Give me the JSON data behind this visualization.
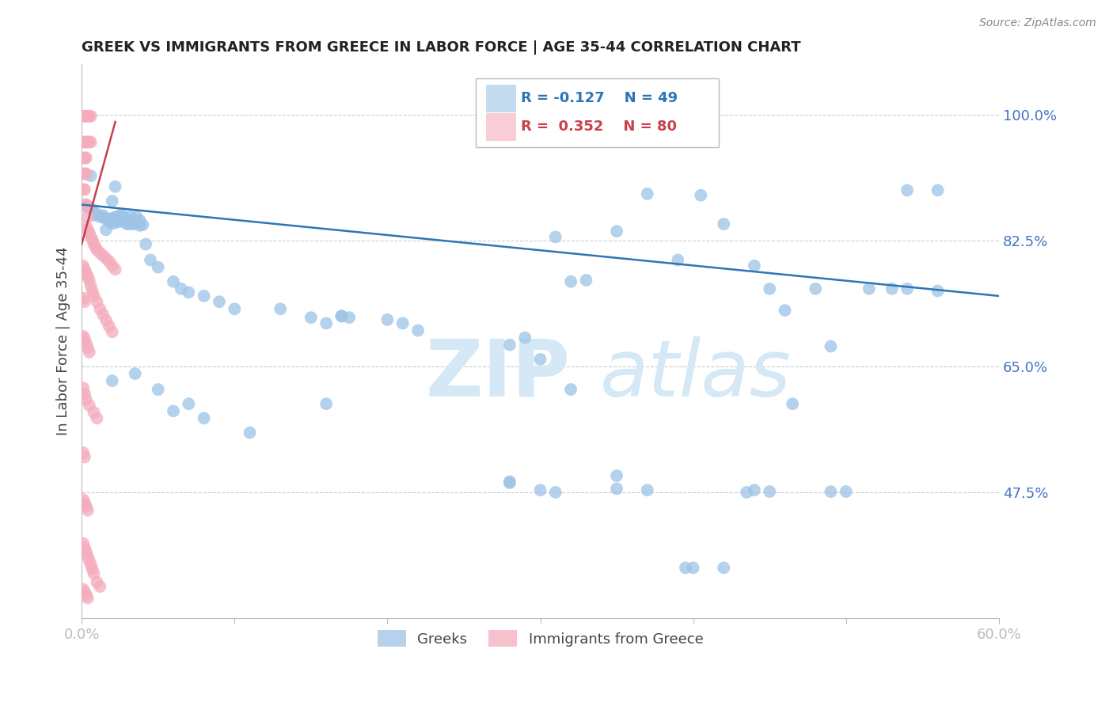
{
  "title": "GREEK VS IMMIGRANTS FROM GREECE IN LABOR FORCE | AGE 35-44 CORRELATION CHART",
  "source": "Source: ZipAtlas.com",
  "ylabel": "In Labor Force | Age 35-44",
  "xlim": [
    0.0,
    0.6
  ],
  "ylim": [
    0.3,
    1.07
  ],
  "xticks": [
    0.0,
    0.1,
    0.2,
    0.3,
    0.4,
    0.5,
    0.6
  ],
  "xticklabels": [
    "0.0%",
    "",
    "",
    "",
    "",
    "",
    "60.0%"
  ],
  "ytick_positions": [
    0.475,
    0.65,
    0.825,
    1.0
  ],
  "ytick_labels": [
    "47.5%",
    "65.0%",
    "82.5%",
    "100.0%"
  ],
  "grid_color": "#cccccc",
  "axis_color": "#bbbbbb",
  "tick_color": "#4472c4",
  "watermark_zip": "ZIP",
  "watermark_atlas": "atlas",
  "blue_R": -0.127,
  "blue_N": 49,
  "pink_R": 0.352,
  "pink_N": 80,
  "blue_color": "#9dc3e6",
  "pink_color": "#f4acbb",
  "blue_line_color": "#2e75b6",
  "pink_line_color": "#c9404d",
  "legend_label_blue": "Greeks",
  "legend_label_pink": "Immigrants from Greece",
  "blue_line_x": [
    0.0,
    0.6
  ],
  "blue_line_y": [
    0.875,
    0.748
  ],
  "pink_line_x": [
    0.0,
    0.022
  ],
  "pink_line_y": [
    0.82,
    0.99
  ],
  "blue_points": [
    [
      0.003,
      0.872
    ],
    [
      0.005,
      0.872
    ],
    [
      0.007,
      0.868
    ],
    [
      0.008,
      0.86
    ],
    [
      0.01,
      0.862
    ],
    [
      0.012,
      0.858
    ],
    [
      0.014,
      0.86
    ],
    [
      0.015,
      0.856
    ],
    [
      0.017,
      0.855
    ],
    [
      0.018,
      0.852
    ],
    [
      0.019,
      0.85
    ],
    [
      0.02,
      0.856
    ],
    [
      0.021,
      0.849
    ],
    [
      0.022,
      0.858
    ],
    [
      0.023,
      0.854
    ],
    [
      0.024,
      0.851
    ],
    [
      0.025,
      0.858
    ],
    [
      0.026,
      0.853
    ],
    [
      0.027,
      0.86
    ],
    [
      0.028,
      0.856
    ],
    [
      0.029,
      0.849
    ],
    [
      0.03,
      0.852
    ],
    [
      0.031,
      0.852
    ],
    [
      0.032,
      0.848
    ],
    [
      0.033,
      0.851
    ],
    [
      0.034,
      0.848
    ],
    [
      0.035,
      0.85
    ],
    [
      0.037,
      0.85
    ],
    [
      0.038,
      0.846
    ],
    [
      0.04,
      0.847
    ],
    [
      0.006,
      0.915
    ],
    [
      0.016,
      0.84
    ],
    [
      0.02,
      0.88
    ],
    [
      0.022,
      0.9
    ],
    [
      0.025,
      0.86
    ],
    [
      0.027,
      0.855
    ],
    [
      0.03,
      0.848
    ],
    [
      0.032,
      0.858
    ],
    [
      0.036,
      0.858
    ],
    [
      0.038,
      0.853
    ],
    [
      0.042,
      0.82
    ],
    [
      0.045,
      0.798
    ],
    [
      0.05,
      0.788
    ],
    [
      0.06,
      0.768
    ],
    [
      0.065,
      0.758
    ],
    [
      0.07,
      0.753
    ],
    [
      0.08,
      0.748
    ],
    [
      0.09,
      0.74
    ],
    [
      0.1,
      0.73
    ],
    [
      0.13,
      0.73
    ],
    [
      0.16,
      0.71
    ],
    [
      0.17,
      0.72
    ],
    [
      0.2,
      0.715
    ],
    [
      0.22,
      0.7
    ],
    [
      0.28,
      0.68
    ],
    [
      0.31,
      0.83
    ],
    [
      0.32,
      0.768
    ],
    [
      0.35,
      0.838
    ],
    [
      0.37,
      0.89
    ],
    [
      0.39,
      0.798
    ],
    [
      0.405,
      0.888
    ],
    [
      0.42,
      0.848
    ],
    [
      0.44,
      0.79
    ],
    [
      0.45,
      0.758
    ],
    [
      0.46,
      0.728
    ],
    [
      0.48,
      0.758
    ],
    [
      0.54,
      0.895
    ],
    [
      0.56,
      0.895
    ],
    [
      0.02,
      0.63
    ],
    [
      0.035,
      0.64
    ],
    [
      0.05,
      0.618
    ],
    [
      0.06,
      0.588
    ],
    [
      0.07,
      0.598
    ],
    [
      0.08,
      0.578
    ],
    [
      0.11,
      0.558
    ],
    [
      0.16,
      0.598
    ],
    [
      0.3,
      0.66
    ],
    [
      0.33,
      0.77
    ],
    [
      0.35,
      0.48
    ],
    [
      0.37,
      0.478
    ],
    [
      0.395,
      0.37
    ],
    [
      0.4,
      0.37
    ],
    [
      0.42,
      0.37
    ],
    [
      0.435,
      0.475
    ],
    [
      0.465,
      0.598
    ],
    [
      0.49,
      0.678
    ],
    [
      0.515,
      0.758
    ],
    [
      0.54,
      0.758
    ],
    [
      0.3,
      0.478
    ],
    [
      0.35,
      0.498
    ],
    [
      0.28,
      0.49
    ],
    [
      0.32,
      0.618
    ],
    [
      0.31,
      0.475
    ],
    [
      0.49,
      0.476
    ],
    [
      0.5,
      0.476
    ],
    [
      0.44,
      0.478
    ],
    [
      0.45,
      0.476
    ],
    [
      0.28,
      0.488
    ],
    [
      0.15,
      0.718
    ],
    [
      0.17,
      0.72
    ],
    [
      0.175,
      0.718
    ],
    [
      0.21,
      0.71
    ],
    [
      0.29,
      0.69
    ],
    [
      0.53,
      0.758
    ],
    [
      0.56,
      0.755
    ]
  ],
  "pink_points": [
    [
      0.002,
      0.998
    ],
    [
      0.003,
      0.998
    ],
    [
      0.004,
      0.998
    ],
    [
      0.005,
      0.998
    ],
    [
      0.006,
      0.998
    ],
    [
      0.002,
      0.998
    ],
    [
      0.001,
      0.962
    ],
    [
      0.002,
      0.962
    ],
    [
      0.003,
      0.962
    ],
    [
      0.004,
      0.962
    ],
    [
      0.005,
      0.962
    ],
    [
      0.006,
      0.962
    ],
    [
      0.001,
      0.94
    ],
    [
      0.002,
      0.94
    ],
    [
      0.003,
      0.94
    ],
    [
      0.001,
      0.918
    ],
    [
      0.002,
      0.918
    ],
    [
      0.003,
      0.918
    ],
    [
      0.001,
      0.896
    ],
    [
      0.002,
      0.896
    ],
    [
      0.002,
      0.875
    ],
    [
      0.003,
      0.875
    ],
    [
      0.004,
      0.858
    ],
    [
      0.003,
      0.844
    ],
    [
      0.004,
      0.84
    ],
    [
      0.005,
      0.836
    ],
    [
      0.006,
      0.83
    ],
    [
      0.007,
      0.826
    ],
    [
      0.008,
      0.82
    ],
    [
      0.009,
      0.816
    ],
    [
      0.01,
      0.812
    ],
    [
      0.012,
      0.808
    ],
    [
      0.014,
      0.804
    ],
    [
      0.016,
      0.8
    ],
    [
      0.018,
      0.796
    ],
    [
      0.02,
      0.79
    ],
    [
      0.022,
      0.785
    ],
    [
      0.001,
      0.79
    ],
    [
      0.002,
      0.785
    ],
    [
      0.003,
      0.78
    ],
    [
      0.004,
      0.775
    ],
    [
      0.005,
      0.77
    ],
    [
      0.006,
      0.762
    ],
    [
      0.007,
      0.755
    ],
    [
      0.008,
      0.748
    ],
    [
      0.01,
      0.74
    ],
    [
      0.012,
      0.73
    ],
    [
      0.014,
      0.722
    ],
    [
      0.016,
      0.714
    ],
    [
      0.018,
      0.706
    ],
    [
      0.02,
      0.698
    ],
    [
      0.001,
      0.745
    ],
    [
      0.002,
      0.74
    ],
    [
      0.001,
      0.692
    ],
    [
      0.002,
      0.688
    ],
    [
      0.003,
      0.682
    ],
    [
      0.004,
      0.676
    ],
    [
      0.005,
      0.67
    ],
    [
      0.001,
      0.62
    ],
    [
      0.002,
      0.612
    ],
    [
      0.003,
      0.604
    ],
    [
      0.005,
      0.596
    ],
    [
      0.008,
      0.586
    ],
    [
      0.01,
      0.578
    ],
    [
      0.001,
      0.53
    ],
    [
      0.002,
      0.524
    ],
    [
      0.001,
      0.465
    ],
    [
      0.002,
      0.46
    ],
    [
      0.003,
      0.455
    ],
    [
      0.004,
      0.45
    ],
    [
      0.001,
      0.404
    ],
    [
      0.002,
      0.398
    ],
    [
      0.003,
      0.392
    ],
    [
      0.004,
      0.386
    ],
    [
      0.005,
      0.38
    ],
    [
      0.006,
      0.374
    ],
    [
      0.007,
      0.368
    ],
    [
      0.008,
      0.362
    ],
    [
      0.01,
      0.35
    ],
    [
      0.012,
      0.344
    ],
    [
      0.001,
      0.34
    ],
    [
      0.002,
      0.336
    ],
    [
      0.003,
      0.332
    ],
    [
      0.004,
      0.328
    ]
  ]
}
